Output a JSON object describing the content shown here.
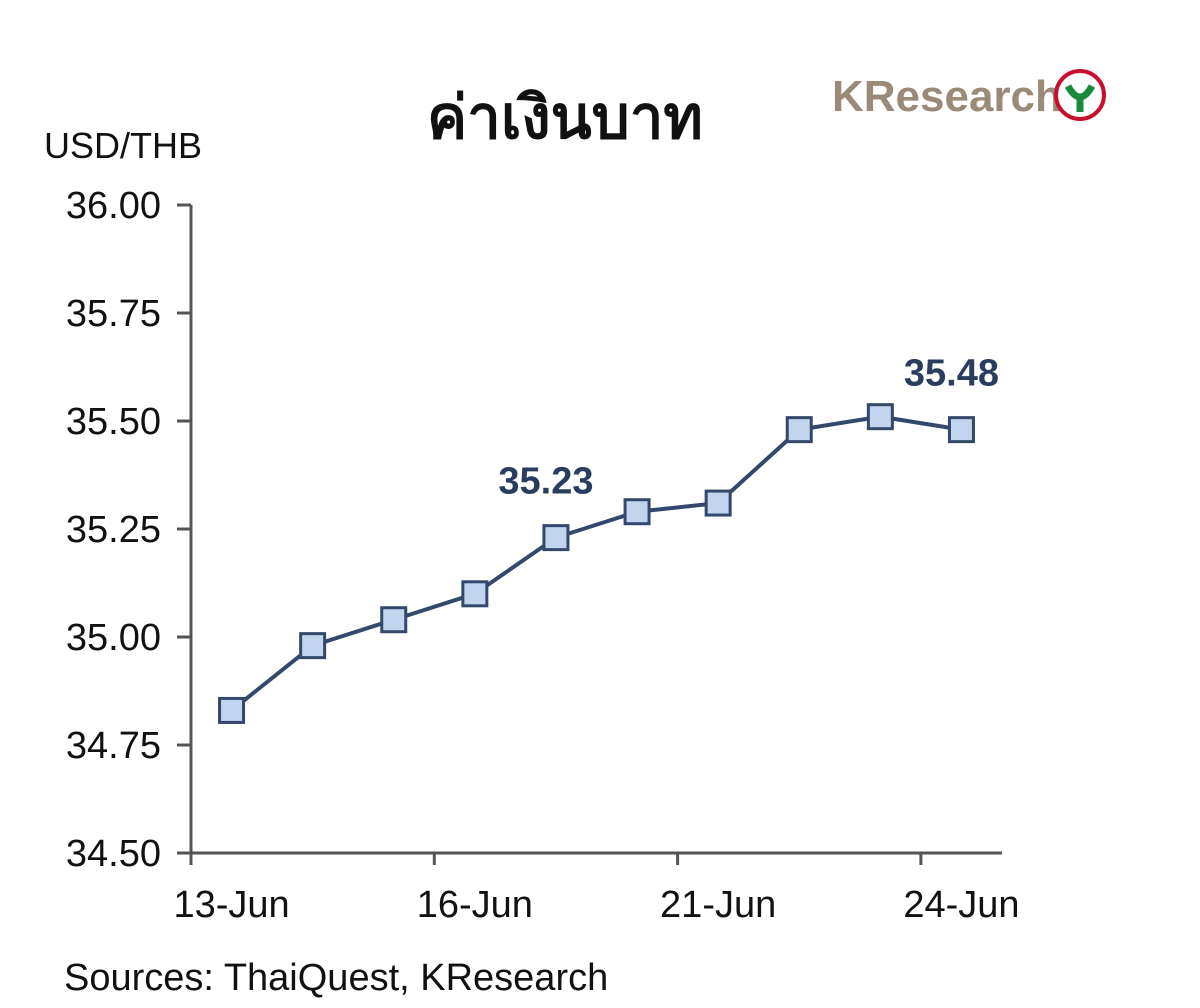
{
  "chart_data": {
    "type": "line",
    "title": "ค่าเงินบาท",
    "brand": "KResearch",
    "y_label": "USD/THB",
    "source": "Sources: ThaiQuest, KResearch",
    "categories": [
      "13-Jun",
      null,
      null,
      "16-Jun",
      null,
      null,
      "21-Jun",
      null,
      null,
      "24-Jun"
    ],
    "values": [
      34.83,
      34.98,
      35.04,
      35.1,
      35.23,
      35.29,
      35.31,
      35.48,
      35.51,
      35.48
    ],
    "value_labels": [
      null,
      null,
      null,
      null,
      "35.23",
      null,
      null,
      null,
      null,
      "35.48"
    ],
    "color": "#34486c",
    "marker_color": "#c3d4ee",
    "ylim": [
      34.5,
      36
    ],
    "yticks": [
      {
        "value": 34.5,
        "label": "34.50"
      },
      {
        "value": 34.75,
        "label": "34.75"
      },
      {
        "value": 35,
        "label": "35.00"
      },
      {
        "value": 35.25,
        "label": "35.25"
      },
      {
        "value": 35.5,
        "label": "35.50"
      },
      {
        "value": 35.75,
        "label": "35.75"
      },
      {
        "value": 36,
        "label": "36.00"
      }
    ],
    "xtick_every": 3,
    "grid": false
  }
}
